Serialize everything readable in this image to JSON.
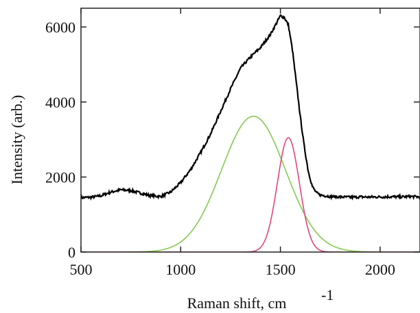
{
  "chart_data": {
    "type": "line",
    "xlabel": "Raman shift, cm",
    "xlabel_superscript": "-1",
    "ylabel": "Intensity (arb.)",
    "xlim": [
      500,
      2200
    ],
    "ylim": [
      0,
      6500
    ],
    "xticks": [
      500,
      1000,
      1500,
      2000
    ],
    "yticks": [
      0,
      2000,
      4000,
      6000
    ],
    "grid": false,
    "series": [
      {
        "color": "#000000",
        "x": [
          500,
          550,
          600,
          650,
          700,
          750,
          800,
          850,
          900,
          950,
          1000,
          1050,
          1100,
          1150,
          1200,
          1250,
          1300,
          1350,
          1400,
          1450,
          1480,
          1500,
          1520,
          1540,
          1560,
          1580,
          1600,
          1620,
          1640,
          1660,
          1680,
          1700,
          1750,
          1800,
          1850,
          1900,
          1950,
          2000,
          2050,
          2100,
          2150,
          2200
        ],
        "y": [
          1450,
          1460,
          1500,
          1600,
          1660,
          1640,
          1570,
          1500,
          1480,
          1600,
          1850,
          2200,
          2650,
          3150,
          3750,
          4350,
          4900,
          5200,
          5450,
          5800,
          6100,
          6300,
          6250,
          6050,
          5400,
          4500,
          3600,
          2800,
          2150,
          1750,
          1580,
          1520,
          1480,
          1470,
          1460,
          1470,
          1465,
          1470,
          1475,
          1470,
          1480,
          1470
        ]
      },
      {
        "color": "#86c94f",
        "gaussian": {
          "amplitude": 3620,
          "center": 1365,
          "sigma": 160
        }
      },
      {
        "color": "#e0457b",
        "gaussian": {
          "amplitude": 3050,
          "center": 1540,
          "sigma": 55
        }
      }
    ]
  }
}
